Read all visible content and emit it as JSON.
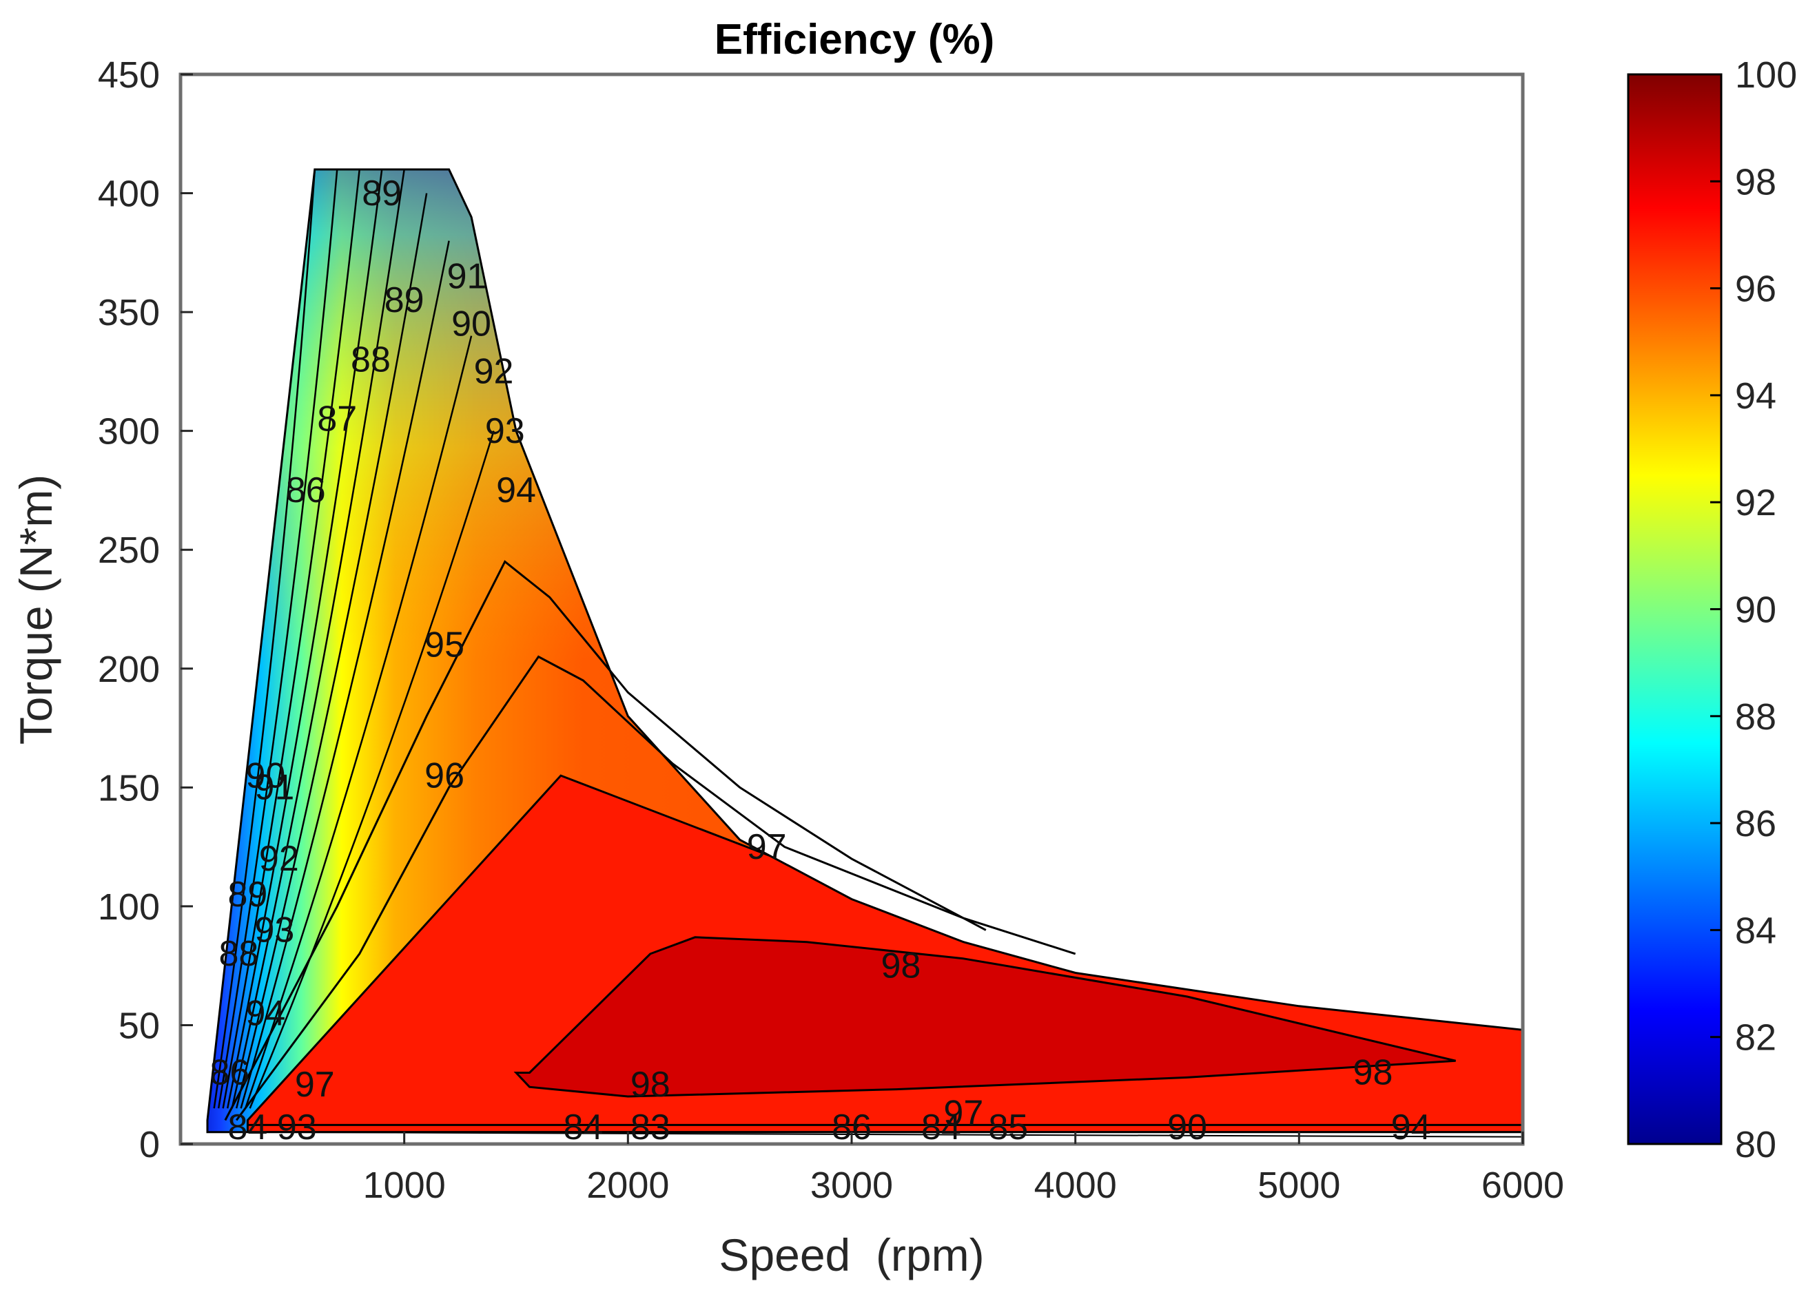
{
  "chart_data": {
    "type": "contour",
    "title": "Efficiency (%)",
    "xlabel": "Speed  (rpm)",
    "ylabel": "Torque (N*m)",
    "xlim": [
      0,
      6000
    ],
    "ylim": [
      0,
      450
    ],
    "x_ticks": [
      1000,
      2000,
      3000,
      4000,
      5000,
      6000
    ],
    "y_ticks": [
      0,
      50,
      100,
      150,
      200,
      250,
      300,
      350,
      400,
      450
    ],
    "colorbar": {
      "range": [
        80,
        100
      ],
      "ticks": [
        80,
        82,
        84,
        86,
        88,
        90,
        92,
        94,
        96,
        98,
        100
      ],
      "colormap": "jet"
    },
    "operating_envelope": {
      "speed": [
        120,
        600,
        1200,
        1300,
        1500,
        2000,
        2500,
        3000,
        3500,
        4000,
        5000,
        6000,
        6000,
        120
      ],
      "torque": [
        10,
        410,
        410,
        390,
        300,
        180,
        128,
        103,
        85,
        72,
        58,
        48,
        5,
        5
      ]
    },
    "regions": [
      {
        "level": 97,
        "speed": [
          300,
          1700,
          3500,
          6000,
          6000,
          300
        ],
        "torque": [
          10,
          155,
          90,
          48,
          5,
          5
        ]
      },
      {
        "level": 98,
        "speed": [
          1560,
          2100,
          2300,
          2800,
          3500,
          4500,
          5700,
          4500,
          3200,
          2000,
          1560,
          1500
        ],
        "torque": [
          30,
          80,
          87,
          85,
          78,
          62,
          35,
          28,
          23,
          20,
          24,
          30
        ]
      }
    ],
    "contour_lines": [
      {
        "level": 95,
        "speed": [
          200,
          700,
          1100,
          1450,
          1650,
          2000,
          2500,
          3000,
          3600
        ],
        "torque": [
          10,
          100,
          180,
          245,
          230,
          190,
          150,
          120,
          90
        ]
      },
      {
        "level": 96,
        "speed": [
          250,
          800,
          1200,
          1600,
          1800,
          2200,
          2700,
          3500,
          4000
        ],
        "torque": [
          10,
          80,
          150,
          205,
          195,
          160,
          125,
          95,
          80
        ]
      }
    ],
    "contour_labels": [
      {
        "text": "95",
        "speed": 1180,
        "torque": 205
      },
      {
        "text": "96",
        "speed": 1180,
        "torque": 150
      },
      {
        "text": "97",
        "speed": 2620,
        "torque": 120
      },
      {
        "text": "98",
        "speed": 3220,
        "torque": 70
      },
      {
        "text": "98",
        "speed": 2100,
        "torque": 20
      },
      {
        "text": "98",
        "speed": 5330,
        "torque": 25
      },
      {
        "text": "97",
        "speed": 600,
        "torque": 20
      },
      {
        "text": "97",
        "speed": 3500,
        "torque": 8
      },
      {
        "text": "94",
        "speed": 1500,
        "torque": 270
      },
      {
        "text": "93",
        "speed": 1450,
        "torque": 295
      },
      {
        "text": "92",
        "speed": 1400,
        "torque": 320
      },
      {
        "text": "91",
        "speed": 1280,
        "torque": 360
      },
      {
        "text": "90",
        "speed": 1300,
        "torque": 340
      },
      {
        "text": "89",
        "speed": 1000,
        "torque": 350
      },
      {
        "text": "88",
        "speed": 850,
        "torque": 325
      },
      {
        "text": "87",
        "speed": 700,
        "torque": 300
      },
      {
        "text": "86",
        "speed": 560,
        "torque": 270
      },
      {
        "text": "89",
        "speed": 900,
        "torque": 395
      },
      {
        "text": "94",
        "speed": 380,
        "torque": 50
      },
      {
        "text": "93",
        "speed": 420,
        "torque": 85
      },
      {
        "text": "92",
        "speed": 440,
        "torque": 115
      },
      {
        "text": "91",
        "speed": 420,
        "torque": 145
      },
      {
        "text": "90",
        "speed": 380,
        "torque": 150
      },
      {
        "text": "89",
        "speed": 300,
        "torque": 100
      },
      {
        "text": "88",
        "speed": 260,
        "torque": 75
      },
      {
        "text": "86",
        "speed": 220,
        "torque": 25
      },
      {
        "text": "84",
        "speed": 300,
        "torque": 2
      },
      {
        "text": "93",
        "speed": 520,
        "torque": 2
      },
      {
        "text": "84",
        "speed": 1800,
        "torque": 2
      },
      {
        "text": "83",
        "speed": 2100,
        "torque": 2
      },
      {
        "text": "86",
        "speed": 3000,
        "torque": 2
      },
      {
        "text": "84",
        "speed": 3400,
        "torque": 2
      },
      {
        "text": "85",
        "speed": 3700,
        "torque": 2
      },
      {
        "text": "90",
        "speed": 4500,
        "torque": 2
      },
      {
        "text": "94",
        "speed": 5500,
        "torque": 2
      }
    ]
  }
}
